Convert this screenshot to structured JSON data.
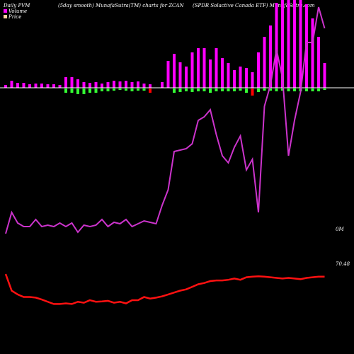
{
  "header": {
    "left": "Daily PVM",
    "middle": "(5day smooth) MunafaSutra(TM) charts for ZCAN",
    "right": "(SPDR Solactive Canada ETF) MunafaSutra.com"
  },
  "legend": [
    {
      "label": "Volume",
      "color": "#ff00ff"
    },
    {
      "label": "Price",
      "color": "#ffd0a0"
    }
  ],
  "chart_data": {
    "type": "bar",
    "title": "(5day smooth) MunafaSutra(TM) charts for ZCAN",
    "grid": false,
    "colors": {
      "volume_bar": "#ff00ff",
      "up_bar": "#33ff33",
      "down_bar": "#ff0000",
      "baseline": "#ffffff",
      "volume_line": "#cc33cc",
      "price_line": "#ff1111"
    },
    "volume_labels": [
      "0M"
    ],
    "price_labels": [
      "70.48"
    ],
    "bars": [
      {
        "v": 4,
        "s": 0
      },
      {
        "v": 10,
        "s": 0
      },
      {
        "v": 7,
        "s": 0
      },
      {
        "v": 7,
        "s": 0
      },
      {
        "v": 5,
        "s": 0
      },
      {
        "v": 6,
        "s": 0
      },
      {
        "v": 6,
        "s": 0
      },
      {
        "v": 5,
        "s": 0
      },
      {
        "v": 5,
        "s": 0
      },
      {
        "v": 4,
        "s": 0
      },
      {
        "v": 15,
        "s": 6
      },
      {
        "v": 15,
        "s": 6
      },
      {
        "v": 12,
        "s": 8
      },
      {
        "v": 8,
        "s": 8
      },
      {
        "v": 7,
        "s": 6
      },
      {
        "v": 8,
        "s": 6
      },
      {
        "v": 6,
        "s": 4
      },
      {
        "v": 8,
        "s": 4
      },
      {
        "v": 10,
        "s": 3
      },
      {
        "v": 9,
        "s": 2
      },
      {
        "v": 10,
        "s": 3
      },
      {
        "v": 8,
        "s": 4
      },
      {
        "v": 9,
        "s": 3
      },
      {
        "v": 6,
        "s": 3
      },
      {
        "v": 5,
        "s": -6
      },
      {
        "v": 0,
        "s": 0
      },
      {
        "v": 8,
        "s": 0
      },
      {
        "v": 38,
        "s": 0
      },
      {
        "v": 48,
        "s": 6
      },
      {
        "v": 36,
        "s": 5
      },
      {
        "v": 30,
        "s": 4
      },
      {
        "v": 50,
        "s": 5
      },
      {
        "v": 56,
        "s": 4
      },
      {
        "v": 56,
        "s": 4
      },
      {
        "v": 40,
        "s": 6
      },
      {
        "v": 56,
        "s": 4
      },
      {
        "v": 42,
        "s": 4
      },
      {
        "v": 35,
        "s": 4
      },
      {
        "v": 25,
        "s": 4
      },
      {
        "v": 30,
        "s": 3
      },
      {
        "v": 28,
        "s": 6
      },
      {
        "v": 22,
        "s": -10
      },
      {
        "v": 50,
        "s": 5
      },
      {
        "v": 72,
        "s": 3
      },
      {
        "v": 88,
        "s": 3
      },
      {
        "v": 120,
        "s": 4
      },
      {
        "v": 125,
        "s": 3
      },
      {
        "v": 125,
        "s": 4
      },
      {
        "v": 125,
        "s": 4
      },
      {
        "v": 125,
        "s": 4
      },
      {
        "v": 118,
        "s": 4
      },
      {
        "v": 98,
        "s": 4
      },
      {
        "v": 72,
        "s": 4
      },
      {
        "v": 35,
        "s": 2
      }
    ],
    "volume_line": [
      50,
      80,
      65,
      60,
      60,
      70,
      60,
      62,
      60,
      65,
      60,
      65,
      52,
      62,
      60,
      62,
      70,
      60,
      66,
      64,
      70,
      60,
      64,
      68,
      66,
      64,
      90,
      112,
      166,
      168,
      170,
      177,
      210,
      215,
      225,
      190,
      160,
      150,
      172,
      188,
      140,
      155,
      80,
      230,
      260,
      310,
      270,
      160,
      210,
      250,
      320,
      320,
      370,
      340
    ],
    "price_line": [
      38,
      90,
      102,
      110,
      110,
      112,
      118,
      125,
      132,
      132,
      130,
      132,
      125,
      128,
      120,
      125,
      124,
      122,
      128,
      125,
      130,
      120,
      120,
      110,
      115,
      112,
      108,
      102,
      96,
      90,
      86,
      78,
      70,
      66,
      60,
      58,
      58,
      56,
      52,
      56,
      48,
      46,
      45,
      46,
      48,
      50,
      52,
      50,
      52,
      54,
      50,
      48,
      46,
      46
    ]
  }
}
